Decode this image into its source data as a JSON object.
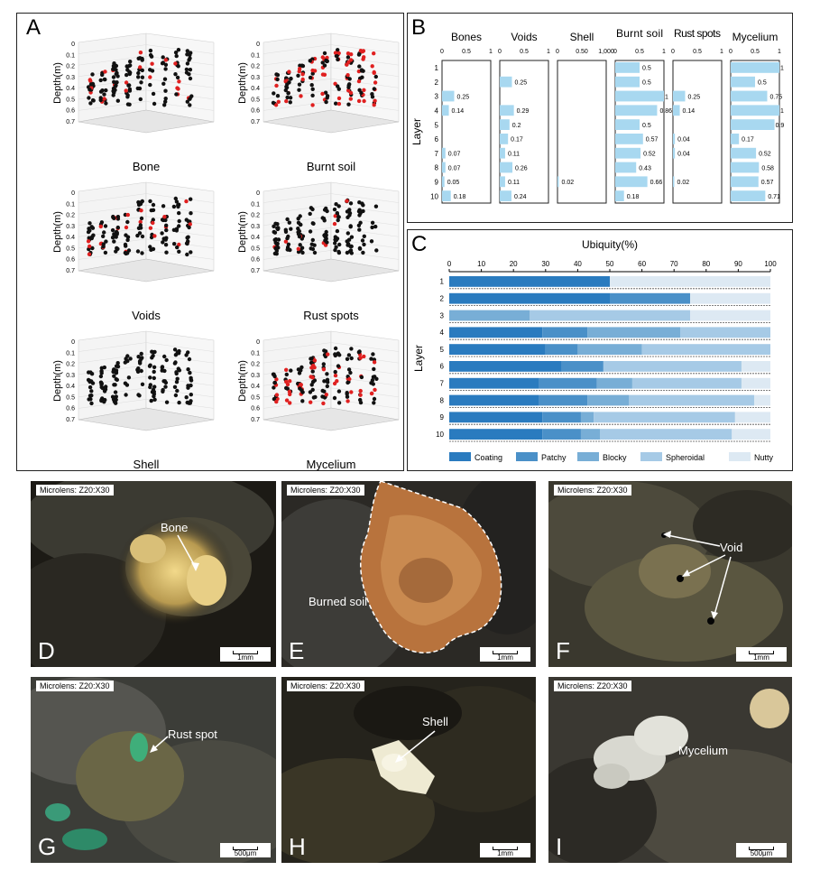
{
  "panel_a": {
    "label": "A",
    "depth_axis_label": "Depth(m)",
    "depth_ticks": [
      "0",
      "0.1",
      "0.2",
      "0.3",
      "0.4",
      "0.5",
      "0.6",
      "0.7"
    ],
    "plots": [
      {
        "title": "Bone",
        "red_fraction": 0.12
      },
      {
        "title": "Burnt soil",
        "red_fraction": 0.45
      },
      {
        "title": "Voids",
        "red_fraction": 0.15
      },
      {
        "title": "Rust spots",
        "red_fraction": 0.05
      },
      {
        "title": "Shell",
        "red_fraction": 0.0
      },
      {
        "title": "Mycelium",
        "red_fraction": 0.4
      }
    ],
    "colors": {
      "present": "#e02020",
      "absent": "#111111"
    }
  },
  "panel_b": {
    "label": "B",
    "y_axis_label": "Layer",
    "layers": [
      "1",
      "2",
      "3",
      "4",
      "5",
      "6",
      "7",
      "8",
      "9",
      "10"
    ],
    "bar_color": "#a8d8f0",
    "columns": [
      {
        "title": "Bones",
        "ticks": [
          "0",
          "0.5",
          "1"
        ],
        "values": [
          null,
          null,
          0.25,
          0.14,
          null,
          null,
          0.07,
          0.07,
          0.05,
          0.18
        ]
      },
      {
        "title": "Voids",
        "ticks": [
          "0",
          "0.5",
          "1"
        ],
        "values": [
          null,
          0.25,
          null,
          0.29,
          0.2,
          0.17,
          0.11,
          0.26,
          0.11,
          0.24
        ]
      },
      {
        "title": "Shell",
        "ticks": [
          "0",
          "0.50",
          "1,000"
        ],
        "values": [
          null,
          null,
          null,
          null,
          null,
          null,
          null,
          null,
          0.02,
          null
        ]
      },
      {
        "title": "Burnt soil",
        "ticks": [
          "0",
          "0.5",
          "1"
        ],
        "values": [
          0.5,
          0.5,
          1,
          0.86,
          0.5,
          0.57,
          0.52,
          0.43,
          0.66,
          0.18
        ]
      },
      {
        "title": "Rust spots",
        "ticks": [
          "0",
          "0.5",
          "1"
        ],
        "values": [
          null,
          null,
          0.25,
          0.14,
          null,
          0.04,
          0.04,
          null,
          0.02,
          null
        ]
      },
      {
        "title": "Mycelium",
        "ticks": [
          "0",
          "0.5",
          "1"
        ],
        "values": [
          1,
          0.5,
          0.75,
          1,
          0.9,
          0.17,
          0.52,
          0.58,
          0.57,
          0.71
        ]
      }
    ]
  },
  "panel_c": {
    "label": "C",
    "title": "Ubiquity(%)",
    "y_axis_label": "Layer",
    "x_ticks": [
      "0",
      "10",
      "20",
      "30",
      "40",
      "50",
      "60",
      "70",
      "80",
      "90",
      "100"
    ],
    "layers": [
      "1",
      "2",
      "3",
      "4",
      "5",
      "6",
      "7",
      "8",
      "9",
      "10"
    ],
    "legend": [
      {
        "name": "Coating",
        "color": "#2a7bbf"
      },
      {
        "name": "Patchy",
        "color": "#4a90c8"
      },
      {
        "name": "Blocky",
        "color": "#78aed6"
      },
      {
        "name": "Spheroidal",
        "color": "#a6cae6"
      },
      {
        "name": "Nutty",
        "color": "#dde9f3"
      }
    ],
    "rows": [
      [
        50,
        0,
        0,
        0,
        50
      ],
      [
        50,
        25,
        0,
        0,
        25
      ],
      [
        0,
        0,
        25,
        50,
        25
      ],
      [
        29,
        14,
        29,
        28,
        0
      ],
      [
        30,
        10,
        20,
        40,
        0
      ],
      [
        35,
        13,
        0,
        43,
        9
      ],
      [
        28,
        18,
        11,
        34,
        9
      ],
      [
        28,
        15,
        13,
        39,
        5
      ],
      [
        29,
        12,
        4,
        44,
        11
      ],
      [
        29,
        12,
        6,
        41,
        12
      ]
    ]
  },
  "photos": [
    {
      "letter": "D",
      "microlens": "Microlens: Z20:X30",
      "annotation": "Bone",
      "scale": "1mm"
    },
    {
      "letter": "E",
      "microlens": "Microlens: Z20:X30",
      "annotation": "Burned soil",
      "scale": "1mm"
    },
    {
      "letter": "F",
      "microlens": "Microlens: Z20:X30",
      "annotation": "Void",
      "scale": "1mm"
    },
    {
      "letter": "G",
      "microlens": "Microlens: Z20:X30",
      "annotation": "Rust spot",
      "scale": "500μm"
    },
    {
      "letter": "H",
      "microlens": "Microlens: Z20:X30",
      "annotation": "Shell",
      "scale": "1mm"
    },
    {
      "letter": "I",
      "microlens": "Microlens: Z20:X30",
      "annotation": "Mycelium",
      "scale": "500μm"
    }
  ]
}
